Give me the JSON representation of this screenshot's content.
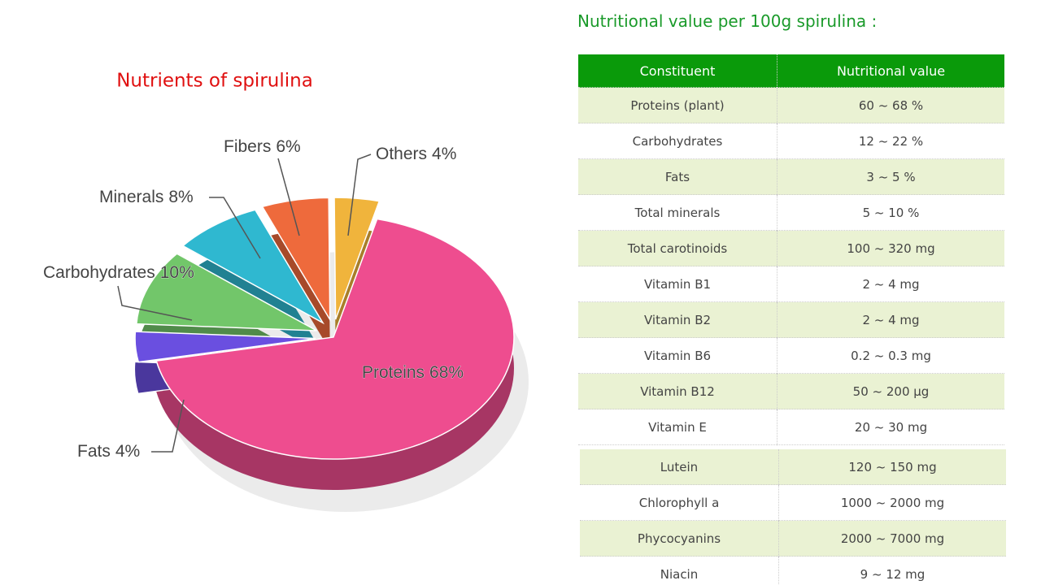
{
  "chart_data": {
    "type": "pie",
    "title": "Nutrients of spirulina",
    "categories": [
      "Proteins",
      "Fats",
      "Carbohydrates",
      "Minerals",
      "Fibers",
      "Others"
    ],
    "values": [
      68,
      4,
      10,
      8,
      6,
      4
    ],
    "value_labels": [
      "68%",
      "4%",
      "10%",
      "8%",
      "6%",
      "4%"
    ],
    "colors": [
      "#ee4d8f",
      "#6a4fe0",
      "#72c66a",
      "#2fb8d0",
      "#ee6a3c",
      "#f0b43c"
    ]
  },
  "table": {
    "title": "Nutritional value per 100g spirulina :",
    "header": [
      "Constituent",
      "Nutritional value"
    ],
    "rows": [
      [
        "Proteins (plant)",
        "60 ~ 68 %"
      ],
      [
        "Carbohydrates",
        "12 ~ 22 %"
      ],
      [
        "Fats",
        "3 ~ 5 %"
      ],
      [
        "Total minerals",
        "5 ~ 10 %"
      ],
      [
        "Total carotinoids",
        "100 ~ 320 mg"
      ],
      [
        "Vitamin B1",
        "2 ~ 4 mg"
      ],
      [
        "Vitamin B2",
        "2 ~ 4 mg"
      ],
      [
        "Vitamin B6",
        "0.2 ~ 0.3 mg"
      ],
      [
        "Vitamin B12",
        "50 ~ 200 µg"
      ],
      [
        "Vitamin E",
        "20 ~ 30 mg"
      ],
      [
        "Lutein",
        "120 ~ 150 mg"
      ],
      [
        "Chlorophyll a",
        "1000 ~ 2000 mg"
      ],
      [
        "Phycocyanins",
        "2000 ~ 7000 mg"
      ],
      [
        "Niacin",
        "9 ~ 12 mg"
      ]
    ]
  }
}
